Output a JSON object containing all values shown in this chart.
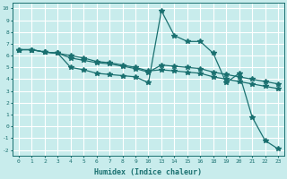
{
  "xlabel": "Humidex (Indice chaleur)",
  "bg_color": "#c8ecec",
  "grid_color": "#ffffff",
  "line_color": "#1a7070",
  "xlabels": [
    "0",
    "1",
    "2",
    "3",
    "4",
    "5",
    "6",
    "7",
    "8",
    "9",
    "10",
    "13",
    "14",
    "15",
    "16",
    "18",
    "19",
    "20",
    "21",
    "22",
    "23"
  ],
  "ylim": [
    -2.5,
    10.5
  ],
  "yticks": [
    -2,
    -1,
    0,
    1,
    2,
    3,
    4,
    5,
    6,
    7,
    8,
    9,
    10
  ],
  "line1_y": [
    6.5,
    6.5,
    6.3,
    6.2,
    5.0,
    4.8,
    4.5,
    4.4,
    4.3,
    4.2,
    3.7,
    9.8,
    7.7,
    7.2,
    7.2,
    6.2,
    3.7,
    4.5,
    0.8,
    -1.2,
    -1.9
  ],
  "line2_y": [
    6.5,
    6.5,
    6.3,
    6.2,
    5.8,
    5.6,
    5.4,
    5.3,
    5.1,
    4.9,
    4.6,
    5.2,
    5.1,
    5.0,
    4.9,
    4.6,
    4.4,
    4.2,
    4.0,
    3.8,
    3.6
  ],
  "line3_y": [
    6.5,
    6.5,
    6.3,
    6.2,
    6.0,
    5.8,
    5.5,
    5.4,
    5.2,
    5.0,
    4.7,
    4.8,
    4.7,
    4.6,
    4.5,
    4.2,
    4.0,
    3.8,
    3.6,
    3.4,
    3.2
  ]
}
